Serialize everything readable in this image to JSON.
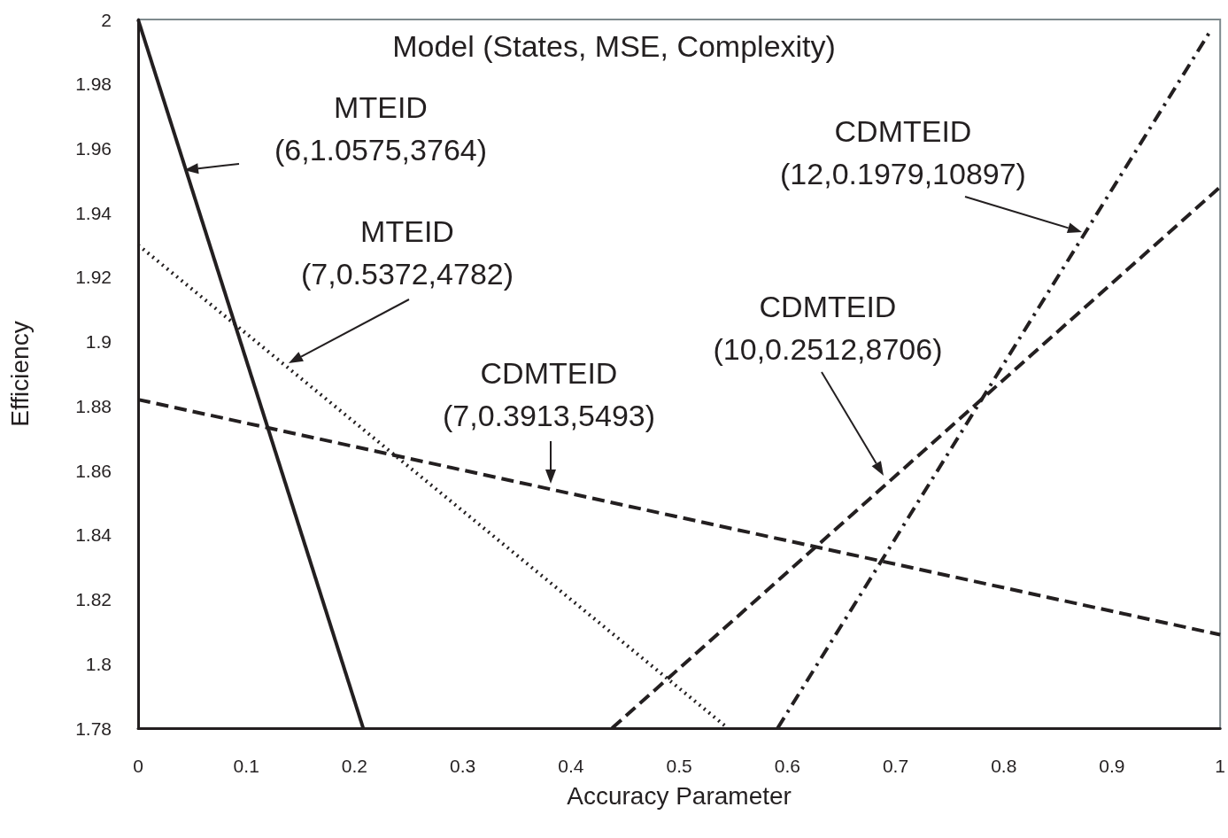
{
  "chart_data": {
    "type": "line",
    "title": "Model (States, MSE, Complexity)",
    "xlabel": "Accuracy Parameter",
    "ylabel": "Efficiency",
    "series": [
      {
        "color": "#231f20",
        "line_style": "solid",
        "x": [
          0,
          0.208
        ],
        "values": [
          2.0,
          1.78
        ]
      },
      {
        "color": "#231f20",
        "line_style": "dotted",
        "x": [
          0,
          0.545
        ],
        "values": [
          1.93,
          1.78
        ]
      },
      {
        "color": "#231f20",
        "line_style": "dashed",
        "x": [
          0,
          1
        ],
        "values": [
          1.882,
          1.809
        ]
      },
      {
        "color": "#231f20",
        "line_style": "dashed",
        "x": [
          0.438,
          1
        ],
        "values": [
          1.78,
          1.948
        ]
      },
      {
        "color": "#231f20",
        "line_style": "dashdot",
        "x": [
          0.591,
          0.992
        ],
        "values": [
          1.78,
          1.997
        ]
      }
    ],
    "annotations": [
      "MTEID\n(6,1.0575,3764)",
      "MTEID\n(7,0.5372,4782)",
      "CDMTEID\n(7,0.3913,5493)",
      "CDMTEID\n(10,0.2512,8706)",
      "CDMTEID\n(12,0.1979,10897)"
    ],
    "xlim": [
      0,
      1
    ],
    "xticks": [
      0,
      0.1,
      0.2,
      0.3,
      0.4,
      0.5,
      0.6,
      0.7,
      0.8,
      0.9,
      1
    ],
    "ylim": [
      1.78,
      2
    ],
    "yticks": [
      1.78,
      1.8,
      1.82,
      1.84,
      1.86,
      1.88,
      1.9,
      1.92,
      1.94,
      1.96,
      1.98,
      2
    ],
    "grid": false,
    "marker": "none"
  }
}
